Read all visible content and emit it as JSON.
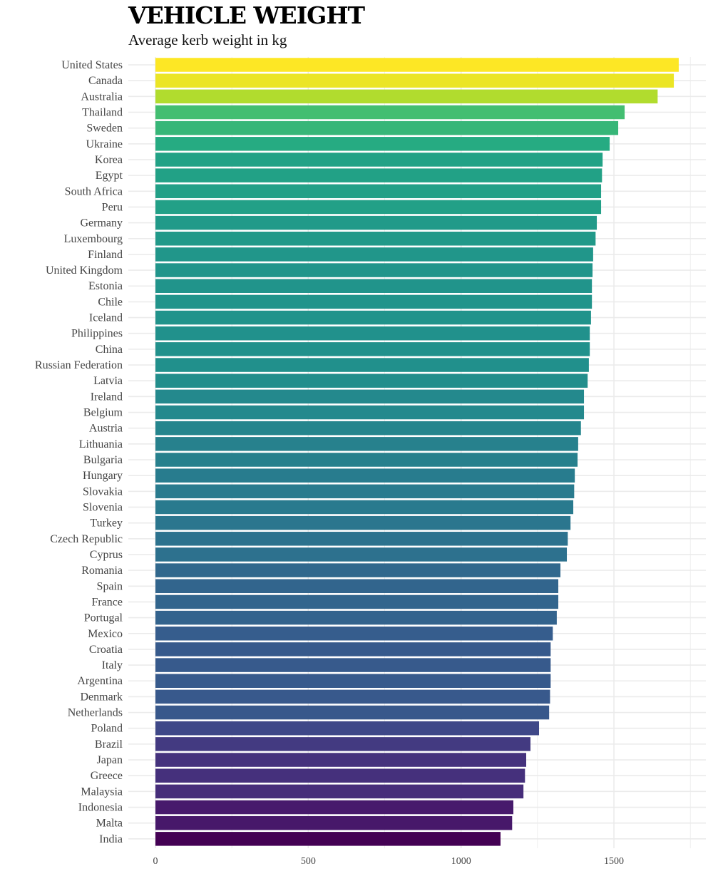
{
  "chart_data": {
    "type": "bar",
    "orientation": "horizontal",
    "title": "VEHICLE WEIGHT",
    "subtitle": "Average kerb weight in kg",
    "xlabel": "",
    "ylabel": "",
    "xlim": [
      0,
      1800
    ],
    "xticks": [
      0,
      500,
      1000,
      1500
    ],
    "grid": true,
    "colormap": "viridis",
    "categories": [
      "United States",
      "Canada",
      "Australia",
      "Thailand",
      "Sweden",
      "Ukraine",
      "Korea",
      "Egypt",
      "South Africa",
      "Peru",
      "Germany",
      "Luxembourg",
      "Finland",
      "United Kingdom",
      "Estonia",
      "Chile",
      "Iceland",
      "Philippines",
      "China",
      "Russian Federation",
      "Latvia",
      "Ireland",
      "Belgium",
      "Austria",
      "Lithuania",
      "Bulgaria",
      "Hungary",
      "Slovakia",
      "Slovenia",
      "Turkey",
      "Czech Republic",
      "Cyprus",
      "Romania",
      "Spain",
      "France",
      "Portugal",
      "Mexico",
      "Croatia",
      "Italy",
      "Argentina",
      "Denmark",
      "Netherlands",
      "Poland",
      "Brazil",
      "Japan",
      "Greece",
      "Malaysia",
      "Indonesia",
      "Malta",
      "India"
    ],
    "values": [
      1712,
      1696,
      1643,
      1535,
      1514,
      1486,
      1463,
      1461,
      1458,
      1458,
      1444,
      1440,
      1432,
      1430,
      1428,
      1428,
      1425,
      1421,
      1421,
      1418,
      1414,
      1402,
      1402,
      1392,
      1383,
      1381,
      1372,
      1370,
      1367,
      1358,
      1349,
      1346,
      1325,
      1318,
      1318,
      1313,
      1300,
      1293,
      1293,
      1293,
      1291,
      1288,
      1255,
      1227,
      1213,
      1209,
      1204,
      1171,
      1167,
      1129
    ]
  }
}
